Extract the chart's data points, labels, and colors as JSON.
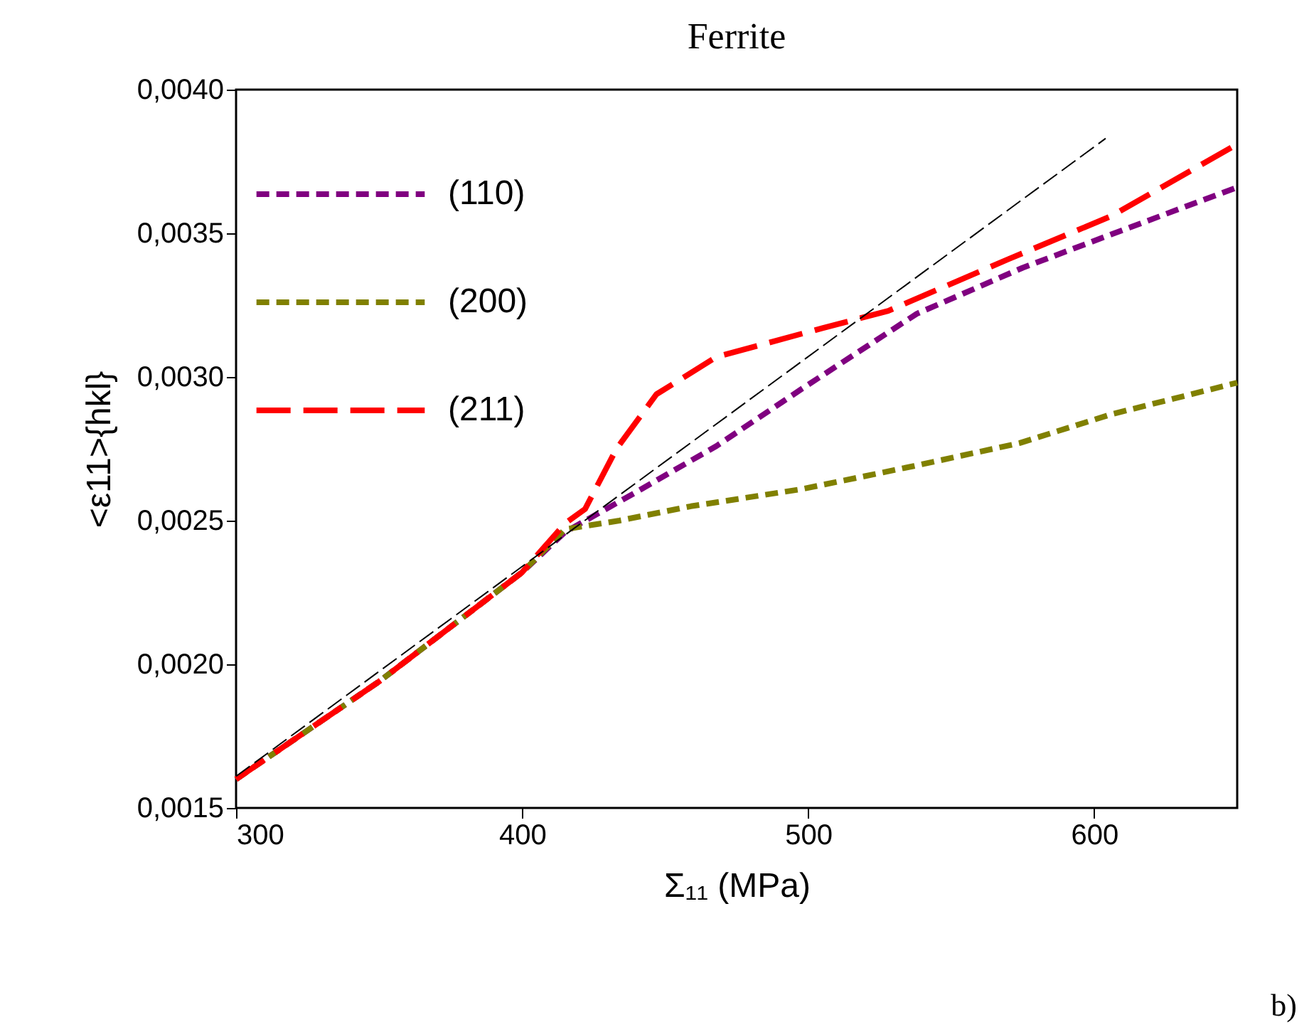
{
  "chart_data": {
    "type": "line",
    "title": "Ferrite",
    "xlabel": "Σ₁₁ (MPa)",
    "ylabel": "<ε11>{hkl}",
    "xlim": [
      300,
      650
    ],
    "xticks": [
      300,
      400,
      500,
      600
    ],
    "ylim": [
      0.0015,
      0.004
    ],
    "yticks": [
      {
        "value": 0.0015,
        "label": "0,0015"
      },
      {
        "value": 0.002,
        "label": "0,0020"
      },
      {
        "value": 0.0025,
        "label": "0,0025"
      },
      {
        "value": 0.003,
        "label": "0,0030"
      },
      {
        "value": 0.0035,
        "label": "0,0035"
      },
      {
        "value": 0.004,
        "label": "0,0040"
      }
    ],
    "grid": false,
    "legend": "top left",
    "line_style": "dashed",
    "marker": "none",
    "annotations": [
      "b)"
    ],
    "series": [
      {
        "name": "(110)",
        "color": "#800080",
        "x": [
          300,
          350,
          400,
          415,
          440,
          468,
          498,
          538,
          575,
          607,
          650
        ],
        "values": [
          0.0016,
          0.00194,
          0.00232,
          0.00246,
          0.0026,
          0.00276,
          0.00296,
          0.00322,
          0.00338,
          0.0035,
          0.00366
        ]
      },
      {
        "name": "(200)",
        "color": "#808000",
        "x": [
          300,
          350,
          400,
          415,
          434,
          459,
          498,
          537,
          574,
          606,
          650
        ],
        "values": [
          0.0016,
          0.00194,
          0.00232,
          0.00247,
          0.0025,
          0.00255,
          0.00261,
          0.00269,
          0.00277,
          0.00287,
          0.00298
        ]
      },
      {
        "name": "(211)",
        "color": "#ff0000",
        "x": [
          300,
          350,
          400,
          415,
          422,
          433,
          447,
          468,
          505,
          528,
          570,
          606,
          650
        ],
        "values": [
          0.0016,
          0.00194,
          0.00232,
          0.00249,
          0.00254,
          0.00275,
          0.00294,
          0.00307,
          0.00317,
          0.00323,
          0.00341,
          0.00356,
          0.00381
        ]
      },
      {
        "type": "line",
        "color": "#000000",
        "x": [
          300,
          604
        ],
        "values": [
          0.00161,
          0.00383
        ]
      }
    ]
  }
}
